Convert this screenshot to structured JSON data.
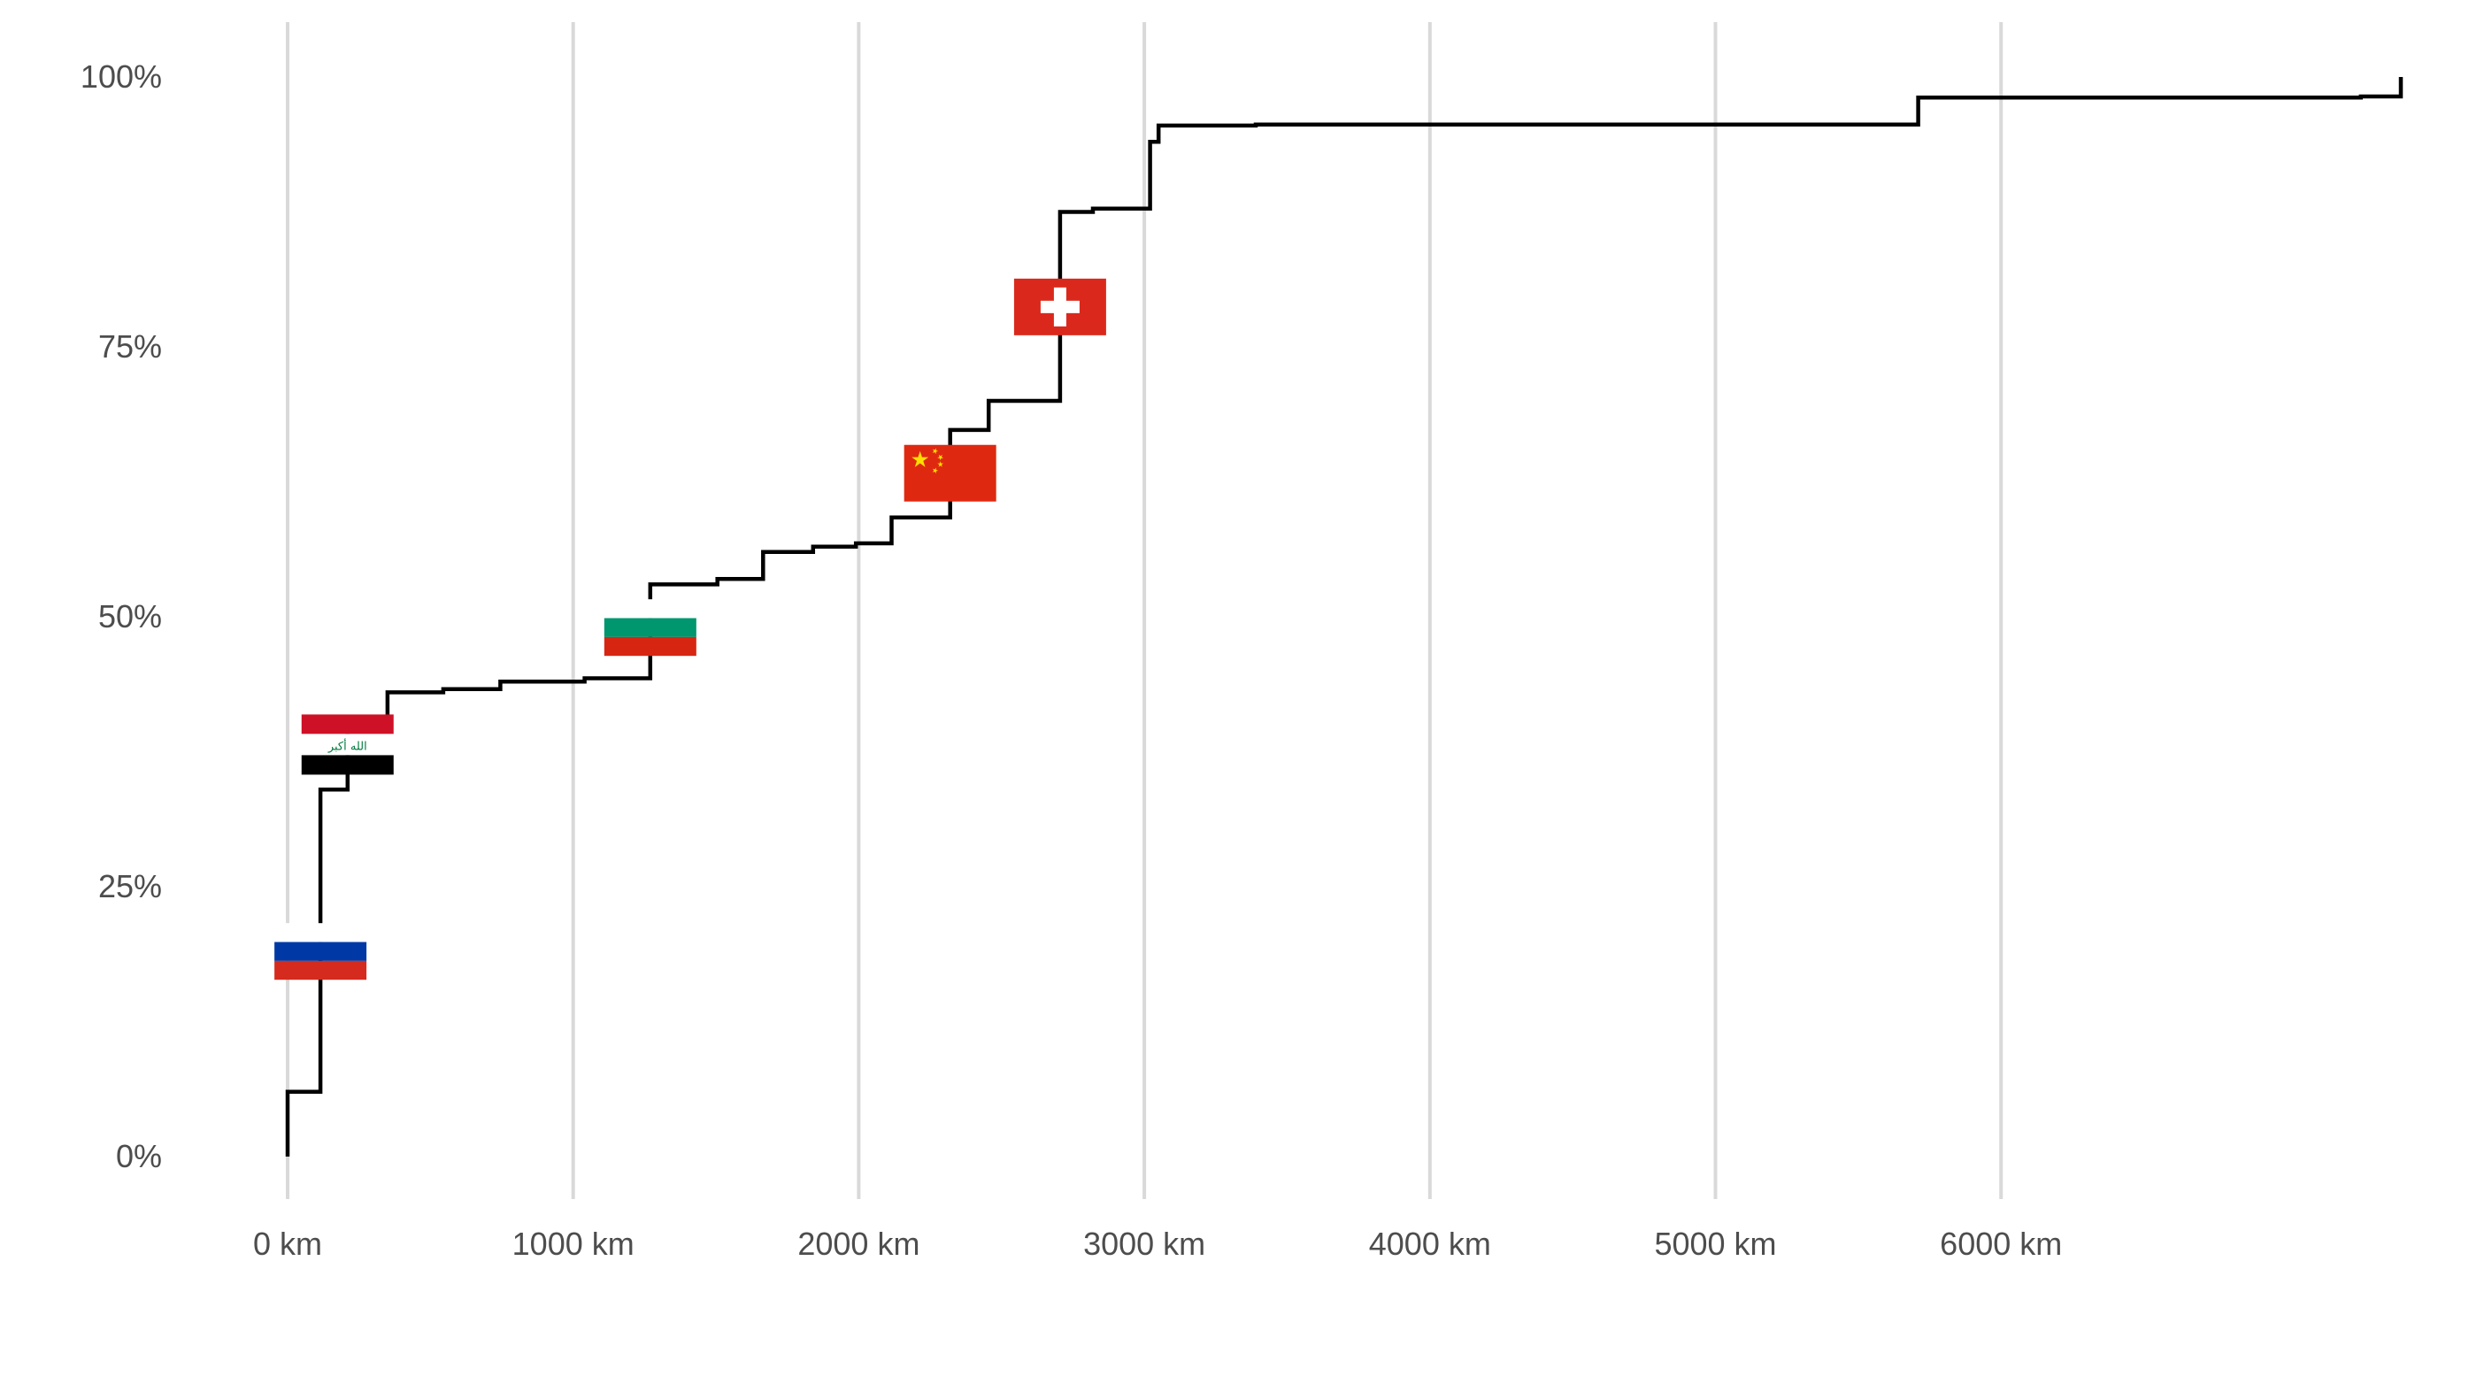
{
  "chart_data": {
    "type": "line",
    "subtype": "step",
    "title": "",
    "xlabel": "",
    "ylabel": "",
    "xlim": [
      0,
      7400
    ],
    "ylim": [
      0,
      1
    ],
    "x_ticks": [
      0,
      1000,
      2000,
      3000,
      4000,
      5000,
      6000
    ],
    "x_tick_labels": [
      "0 km",
      "1000 km",
      "2000 km",
      "3000 km",
      "4000 km",
      "5000 km",
      "6000 km"
    ],
    "y_ticks": [
      0,
      0.25,
      0.5,
      0.75,
      1
    ],
    "y_tick_labels": [
      "0%",
      "25%",
      "50%",
      "75%",
      "100%"
    ],
    "grid": {
      "vertical": true,
      "horizontal": false
    },
    "legend": "none",
    "series": [
      {
        "color": "#000000",
        "points": [
          [
            0,
            0.0
          ],
          [
            0,
            0.06
          ],
          [
            115,
            0.06
          ],
          [
            115,
            0.2
          ],
          [
            115,
            0.225
          ],
          [
            115,
            0.34
          ],
          [
            210,
            0.34
          ],
          [
            210,
            0.36
          ],
          [
            210,
            0.4
          ],
          [
            210,
            0.405
          ],
          [
            350,
            0.405
          ],
          [
            350,
            0.43
          ],
          [
            545,
            0.43
          ],
          [
            545,
            0.433
          ],
          [
            745,
            0.433
          ],
          [
            745,
            0.44
          ],
          [
            1040,
            0.44
          ],
          [
            1040,
            0.443
          ],
          [
            1270,
            0.443
          ],
          [
            1270,
            0.46
          ],
          [
            1270,
            0.52
          ],
          [
            1270,
            0.53
          ],
          [
            1505,
            0.53
          ],
          [
            1505,
            0.535
          ],
          [
            1665,
            0.535
          ],
          [
            1665,
            0.56
          ],
          [
            1840,
            0.56
          ],
          [
            1840,
            0.565
          ],
          [
            1990,
            0.565
          ],
          [
            1990,
            0.568
          ],
          [
            2115,
            0.568
          ],
          [
            2115,
            0.592
          ],
          [
            2320,
            0.592
          ],
          [
            2320,
            0.63
          ],
          [
            2320,
            0.673
          ],
          [
            2455,
            0.673
          ],
          [
            2455,
            0.7
          ],
          [
            2705,
            0.7
          ],
          [
            2705,
            0.76
          ],
          [
            2705,
            0.81
          ],
          [
            2705,
            0.875
          ],
          [
            2820,
            0.875
          ],
          [
            2820,
            0.878
          ],
          [
            3020,
            0.878
          ],
          [
            3020,
            0.94
          ],
          [
            3050,
            0.94
          ],
          [
            3050,
            0.955
          ],
          [
            3390,
            0.955
          ],
          [
            3390,
            0.956
          ],
          [
            5710,
            0.956
          ],
          [
            5710,
            0.981
          ],
          [
            7260,
            0.981
          ],
          [
            7260,
            0.982
          ],
          [
            7400,
            0.982
          ],
          [
            7400,
            1.0
          ]
        ]
      }
    ],
    "annotations": [
      {
        "type": "flag",
        "icon": "russia-flag-icon",
        "country": "Russia",
        "x": 115,
        "y": 0.19,
        "colors": [
          "#ffffff",
          "#0039a6",
          "#d52b1e"
        ]
      },
      {
        "type": "flag",
        "icon": "iraq-flag-icon",
        "country": "Iraq",
        "x": 210,
        "y": 0.38,
        "text": "الله أكبر",
        "colors": [
          "#ce1126",
          "#ffffff",
          "#000000",
          "#007a3d"
        ]
      },
      {
        "type": "flag",
        "icon": "bulgaria-flag-icon",
        "country": "Bulgaria",
        "x": 1270,
        "y": 0.49,
        "colors": [
          "#ffffff",
          "#00966e",
          "#d62612"
        ]
      },
      {
        "type": "flag",
        "icon": "china-flag-icon",
        "country": "China",
        "x": 2320,
        "y": 0.633,
        "colors": [
          "#de2910",
          "#ffde00"
        ]
      },
      {
        "type": "flag",
        "icon": "switzerland-flag-icon",
        "country": "Switzerland",
        "x": 2705,
        "y": 0.787,
        "colors": [
          "#da291c",
          "#ffffff"
        ]
      }
    ]
  }
}
